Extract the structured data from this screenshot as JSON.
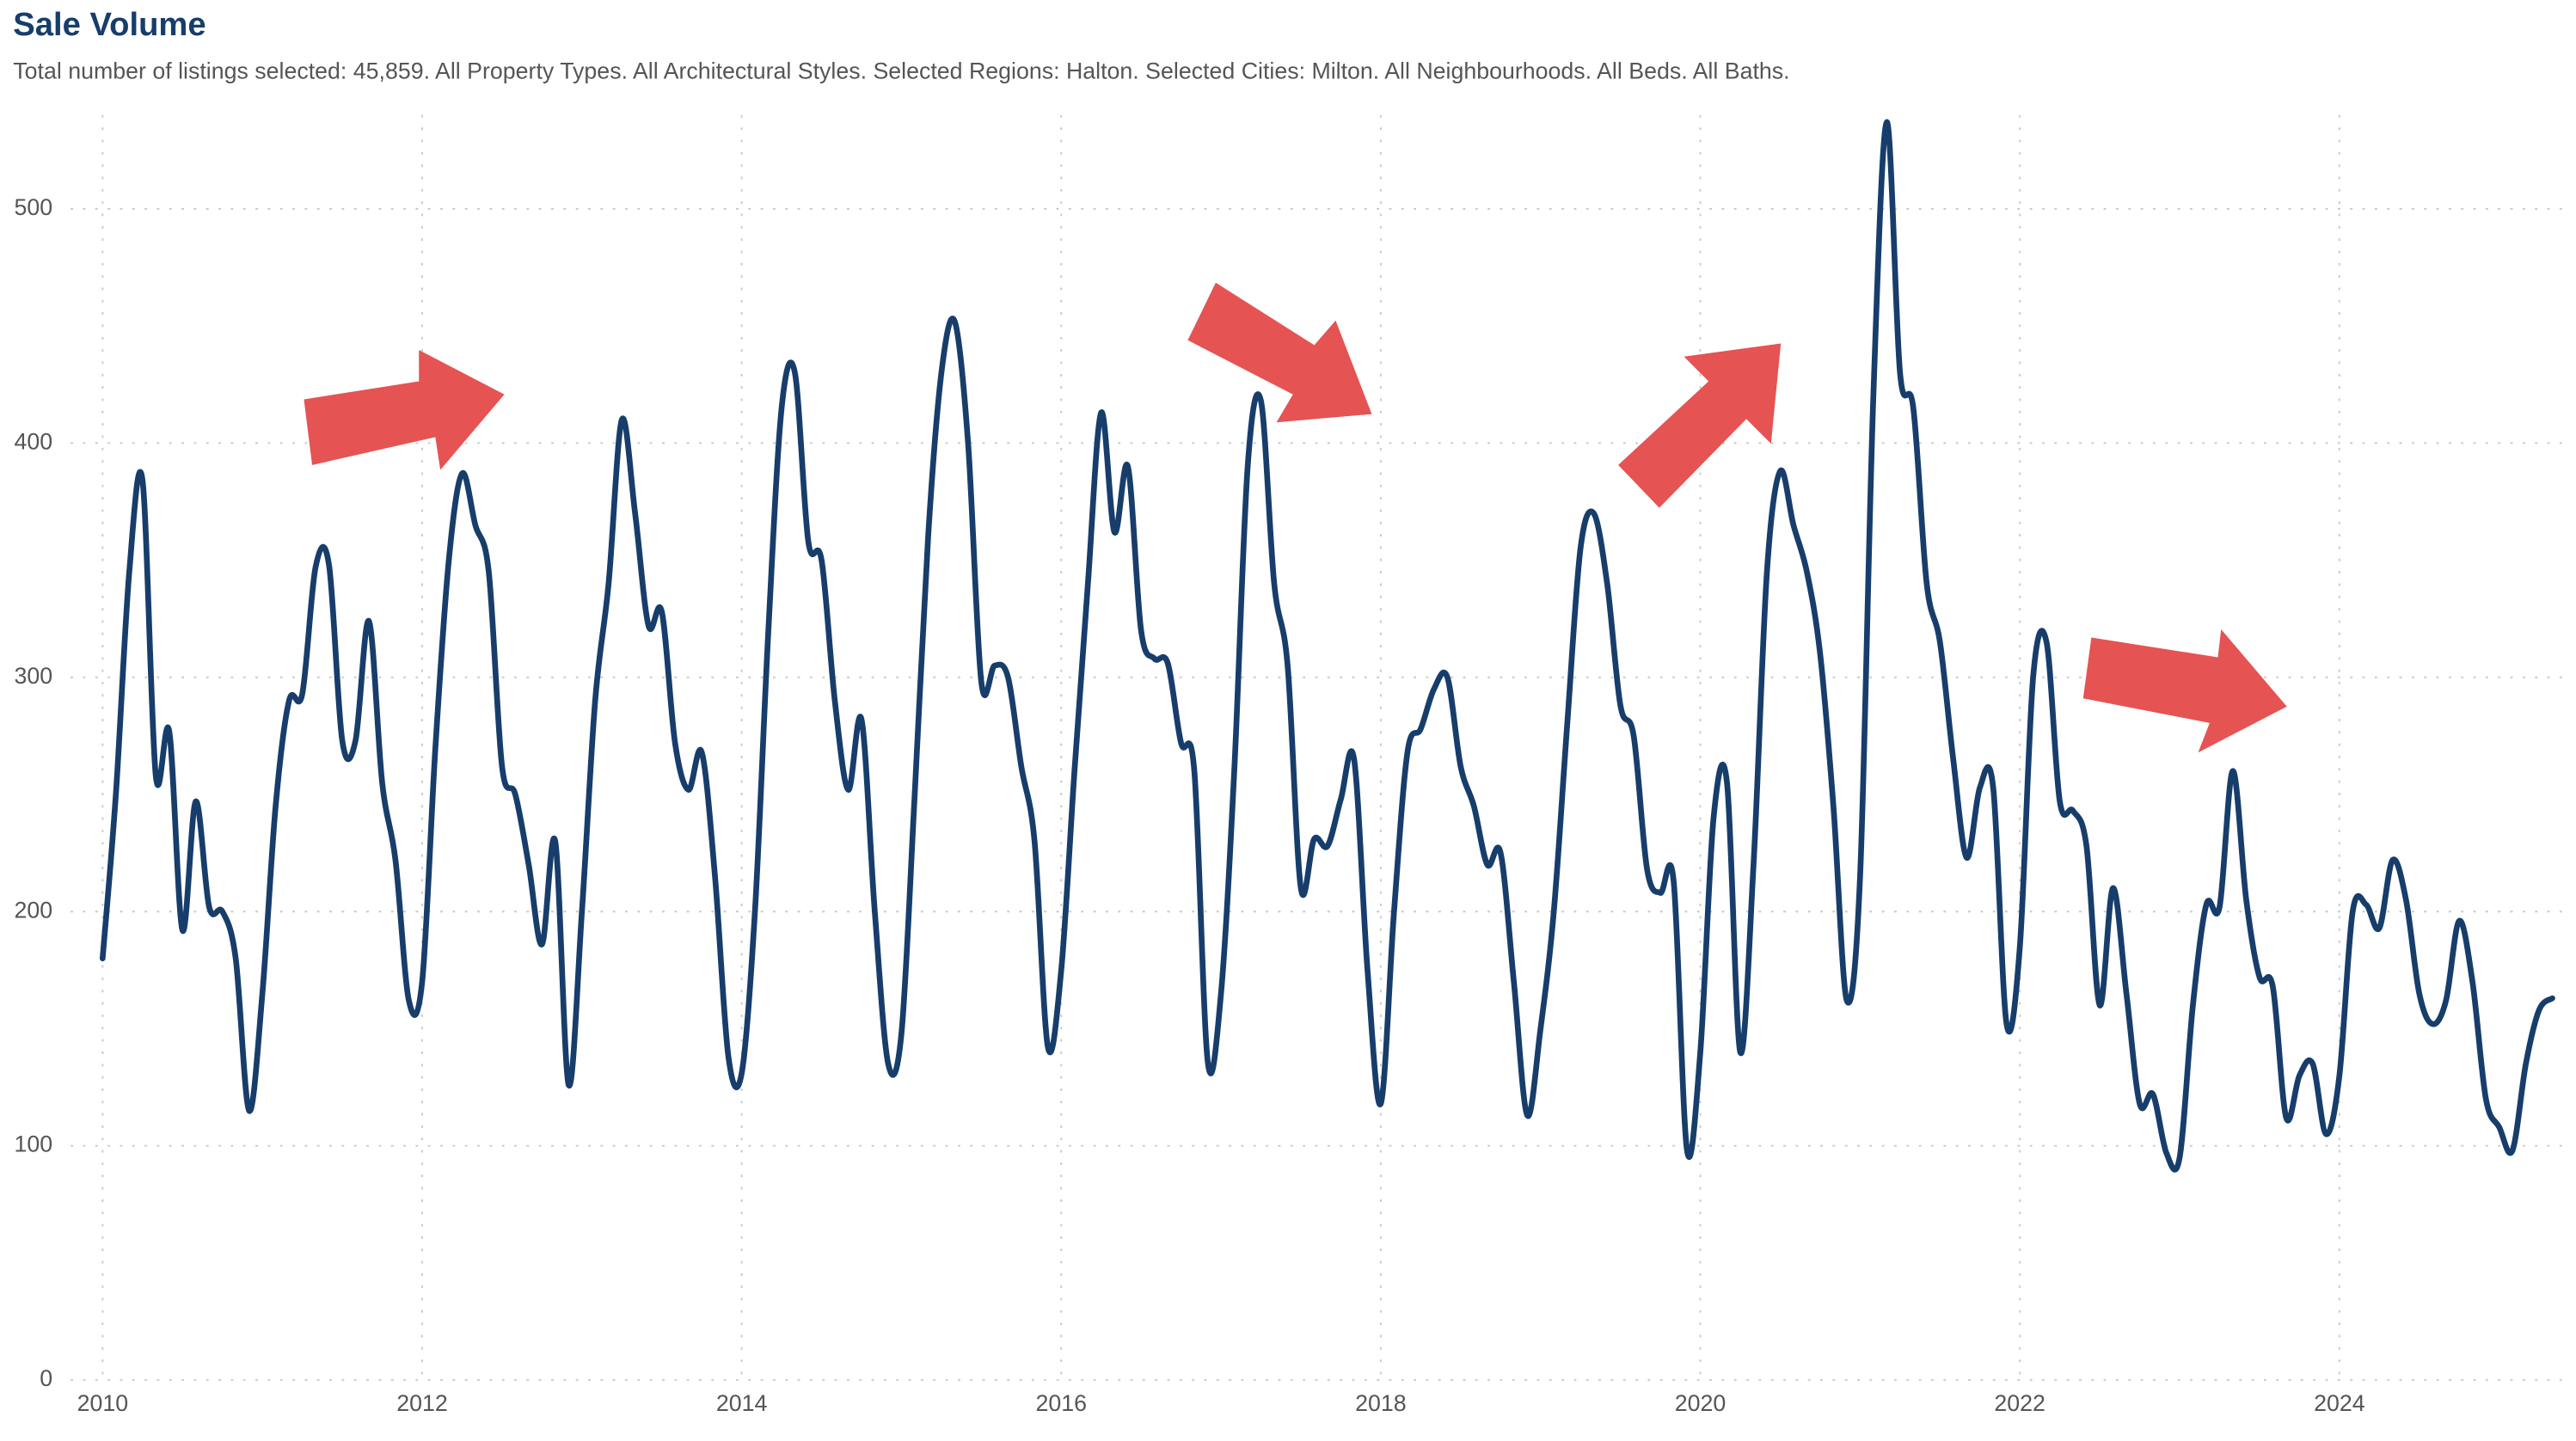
{
  "chart_data": {
    "type": "line",
    "title": "Sale Volume",
    "subtitle": "Total number of listings selected: 45,859. All Property Types. All Architectural Styles. Selected Regions: Halton. Selected Cities: Milton. All Neighbourhoods. All Beds. All Baths.",
    "x": [
      2010,
      2010.083,
      2010.167,
      2010.25,
      2010.333,
      2010.417,
      2010.5,
      2010.583,
      2010.667,
      2010.75,
      2010.833,
      2010.917,
      2011,
      2011.083,
      2011.167,
      2011.25,
      2011.333,
      2011.417,
      2011.5,
      2011.583,
      2011.667,
      2011.75,
      2011.833,
      2011.917,
      2012,
      2012.083,
      2012.167,
      2012.25,
      2012.333,
      2012.417,
      2012.5,
      2012.583,
      2012.667,
      2012.75,
      2012.833,
      2012.917,
      2013,
      2013.083,
      2013.167,
      2013.25,
      2013.333,
      2013.417,
      2013.5,
      2013.583,
      2013.667,
      2013.75,
      2013.833,
      2013.917,
      2014,
      2014.083,
      2014.167,
      2014.25,
      2014.333,
      2014.417,
      2014.5,
      2014.583,
      2014.667,
      2014.75,
      2014.833,
      2014.917,
      2015,
      2015.083,
      2015.167,
      2015.25,
      2015.333,
      2015.417,
      2015.5,
      2015.583,
      2015.667,
      2015.75,
      2015.833,
      2015.917,
      2016,
      2016.083,
      2016.167,
      2016.25,
      2016.333,
      2016.417,
      2016.5,
      2016.583,
      2016.667,
      2016.75,
      2016.833,
      2016.917,
      2017,
      2017.083,
      2017.167,
      2017.25,
      2017.333,
      2017.417,
      2017.5,
      2017.583,
      2017.667,
      2017.75,
      2017.833,
      2017.917,
      2018,
      2018.083,
      2018.167,
      2018.25,
      2018.333,
      2018.417,
      2018.5,
      2018.583,
      2018.667,
      2018.75,
      2018.833,
      2018.917,
      2019,
      2019.083,
      2019.167,
      2019.25,
      2019.333,
      2019.417,
      2019.5,
      2019.583,
      2019.667,
      2019.75,
      2019.833,
      2019.917,
      2020,
      2020.083,
      2020.167,
      2020.25,
      2020.333,
      2020.417,
      2020.5,
      2020.583,
      2020.667,
      2020.75,
      2020.833,
      2020.917,
      2021,
      2021.083,
      2021.167,
      2021.25,
      2021.333,
      2021.417,
      2021.5,
      2021.583,
      2021.667,
      2021.75,
      2021.833,
      2021.917,
      2022,
      2022.083,
      2022.167,
      2022.25,
      2022.333,
      2022.417,
      2022.5,
      2022.583,
      2022.667,
      2022.75,
      2022.833,
      2022.917,
      2023,
      2023.083,
      2023.167,
      2023.25,
      2023.333,
      2023.417,
      2023.5,
      2023.583,
      2023.667,
      2023.75,
      2023.833,
      2023.917,
      2024,
      2024.083,
      2024.167,
      2024.25,
      2024.333,
      2024.417,
      2024.5,
      2024.583,
      2024.667,
      2024.75,
      2024.833,
      2024.917,
      2025,
      2025.083,
      2025.167,
      2025.25,
      2025.333
    ],
    "series": [
      {
        "color": "#173d6b",
        "values": [
          180,
          250,
          345,
          384,
          258,
          277,
          192,
          247,
          202,
          200,
          180,
          115,
          165,
          245,
          290,
          293,
          347,
          348,
          273,
          273,
          324,
          255,
          222,
          162,
          170,
          270,
          350,
          387,
          365,
          345,
          262,
          250,
          220,
          186,
          230,
          126,
          200,
          290,
          340,
          410,
          370,
          322,
          328,
          272,
          252,
          268,
          215,
          138,
          131,
          200,
          320,
          415,
          430,
          358,
          350,
          290,
          252,
          282,
          200,
          135,
          148,
          250,
          360,
          430,
          452,
          400,
          298,
          305,
          300,
          262,
          230,
          142,
          175,
          260,
          340,
          413,
          362,
          390,
          320,
          308,
          306,
          272,
          260,
          136,
          165,
          260,
          390,
          418,
          340,
          305,
          210,
          231,
          228,
          248,
          265,
          175,
          118,
          200,
          268,
          278,
          295,
          300,
          262,
          245,
          220,
          225,
          170,
          113,
          150,
          200,
          280,
          355,
          370,
          340,
          288,
          275,
          218,
          208,
          213,
          98,
          140,
          240,
          255,
          140,
          220,
          345,
          388,
          365,
          345,
          310,
          245,
          162,
          215,
          420,
          537,
          430,
          415,
          340,
          315,
          265,
          223,
          253,
          253,
          152,
          185,
          300,
          315,
          247,
          243,
          228,
          160,
          210,
          165,
          118,
          122,
          97,
          95,
          160,
          203,
          202,
          260,
          205,
          172,
          168,
          112,
          130,
          135,
          105,
          130,
          200,
          203,
          193,
          222,
          205,
          165,
          152,
          162,
          196,
          170,
          120,
          108,
          98,
          135,
          158,
          163
        ]
      }
    ],
    "xlim": [
      2009.8,
      2025.45
    ],
    "ylim": [
      0,
      540
    ],
    "xticks": [
      2010,
      2012,
      2014,
      2016,
      2018,
      2020,
      2022,
      2024
    ],
    "yticks": [
      0,
      100,
      200,
      300,
      400,
      500
    ],
    "grid": true
  }
}
